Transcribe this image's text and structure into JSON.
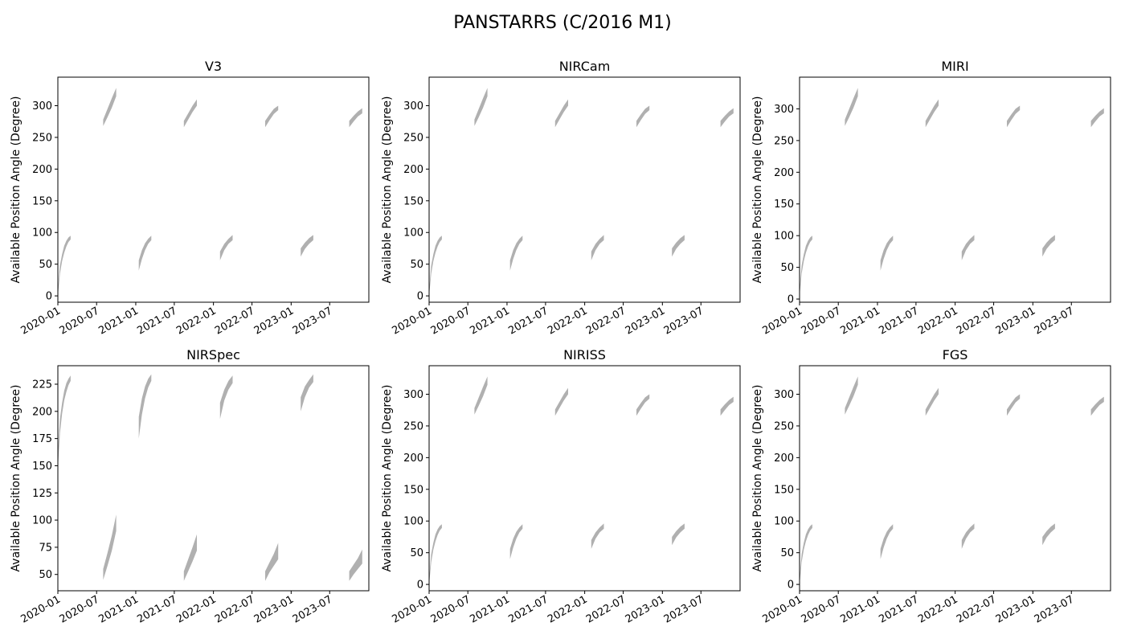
{
  "figure_title": "PANSTARRS (C/2016 M1)",
  "fill_color": "#b0b0b0",
  "chart_data": [
    {
      "type": "area",
      "title": "V3",
      "ylabel": "Available Position Angle (Degree)",
      "xlim": [
        "2020-01-01",
        "2024-01-01"
      ],
      "ylim": [
        -10,
        345
      ],
      "yticks": [
        0,
        50,
        100,
        150,
        200,
        250,
        300
      ],
      "xticks": [
        "2020-01",
        "2020-07",
        "2021-01",
        "2021-07",
        "2022-01",
        "2022-07",
        "2023-01",
        "2023-07"
      ],
      "segments": [
        {
          "start": "2020-01-01",
          "end": "2020-03-01",
          "low": [
            0,
            35,
            55,
            68,
            78,
            85,
            89
          ],
          "high": [
            10,
            48,
            66,
            79,
            87,
            92,
            95
          ]
        },
        {
          "start": "2020-08-01",
          "end": "2020-10-01",
          "low": [
            268,
            282,
            297,
            315
          ],
          "high": [
            278,
            295,
            312,
            328
          ]
        },
        {
          "start": "2021-01-15",
          "end": "2021-03-15",
          "low": [
            40,
            58,
            72,
            82,
            88
          ],
          "high": [
            56,
            72,
            83,
            90,
            95
          ]
        },
        {
          "start": "2021-08-15",
          "end": "2021-10-15",
          "low": [
            266,
            278,
            290,
            300
          ],
          "high": [
            276,
            288,
            300,
            310
          ]
        },
        {
          "start": "2022-02-01",
          "end": "2022-04-01",
          "low": [
            56,
            72,
            82,
            88
          ],
          "high": [
            70,
            82,
            90,
            96
          ]
        },
        {
          "start": "2022-09-01",
          "end": "2022-11-01",
          "low": [
            266,
            277,
            287,
            293
          ],
          "high": [
            276,
            286,
            295,
            300
          ]
        },
        {
          "start": "2023-02-15",
          "end": "2023-04-15",
          "low": [
            62,
            74,
            82,
            88
          ],
          "high": [
            75,
            84,
            91,
            96
          ]
        },
        {
          "start": "2023-10-01",
          "end": "2023-12-01",
          "low": [
            266,
            275,
            283,
            288
          ],
          "high": [
            276,
            284,
            291,
            296
          ]
        }
      ]
    },
    {
      "type": "area",
      "title": "NIRCam",
      "ylabel": "Available Position Angle (Degree)",
      "xlim": [
        "2020-01-01",
        "2024-01-01"
      ],
      "ylim": [
        -10,
        345
      ],
      "yticks": [
        0,
        50,
        100,
        150,
        200,
        250,
        300
      ],
      "xticks": [
        "2020-01",
        "2020-07",
        "2021-01",
        "2021-07",
        "2022-01",
        "2022-07",
        "2023-01",
        "2023-07"
      ],
      "segments": [
        {
          "start": "2020-01-01",
          "end": "2020-03-01",
          "low": [
            0,
            35,
            55,
            68,
            78,
            85,
            89
          ],
          "high": [
            10,
            48,
            66,
            79,
            87,
            92,
            95
          ]
        },
        {
          "start": "2020-08-01",
          "end": "2020-10-01",
          "low": [
            268,
            282,
            297,
            315
          ],
          "high": [
            278,
            295,
            312,
            328
          ]
        },
        {
          "start": "2021-01-15",
          "end": "2021-03-15",
          "low": [
            40,
            58,
            72,
            82,
            88
          ],
          "high": [
            56,
            72,
            83,
            90,
            95
          ]
        },
        {
          "start": "2021-08-15",
          "end": "2021-10-15",
          "low": [
            266,
            278,
            290,
            300
          ],
          "high": [
            276,
            288,
            300,
            310
          ]
        },
        {
          "start": "2022-02-01",
          "end": "2022-04-01",
          "low": [
            56,
            72,
            82,
            88
          ],
          "high": [
            70,
            82,
            90,
            96
          ]
        },
        {
          "start": "2022-09-01",
          "end": "2022-11-01",
          "low": [
            266,
            277,
            287,
            293
          ],
          "high": [
            276,
            286,
            295,
            300
          ]
        },
        {
          "start": "2023-02-15",
          "end": "2023-04-15",
          "low": [
            62,
            74,
            82,
            88
          ],
          "high": [
            75,
            84,
            91,
            96
          ]
        },
        {
          "start": "2023-10-01",
          "end": "2023-12-01",
          "low": [
            266,
            275,
            283,
            288
          ],
          "high": [
            276,
            284,
            291,
            296
          ]
        }
      ]
    },
    {
      "type": "area",
      "title": "MIRI",
      "ylabel": "Available Position Angle (Degree)",
      "xlim": [
        "2020-01-01",
        "2024-01-01"
      ],
      "ylim": [
        -5,
        350
      ],
      "yticks": [
        0,
        50,
        100,
        150,
        200,
        250,
        300
      ],
      "xticks": [
        "2020-01",
        "2020-07",
        "2021-01",
        "2021-07",
        "2022-01",
        "2022-07",
        "2023-01",
        "2023-07"
      ],
      "segments": [
        {
          "start": "2020-01-01",
          "end": "2020-03-01",
          "low": [
            5,
            40,
            60,
            73,
            83,
            90,
            94
          ],
          "high": [
            15,
            53,
            71,
            84,
            92,
            97,
            100
          ]
        },
        {
          "start": "2020-08-01",
          "end": "2020-10-01",
          "low": [
            273,
            287,
            302,
            320
          ],
          "high": [
            283,
            300,
            317,
            333
          ]
        },
        {
          "start": "2021-01-15",
          "end": "2021-03-15",
          "low": [
            45,
            63,
            77,
            87,
            93
          ],
          "high": [
            61,
            77,
            88,
            95,
            100
          ]
        },
        {
          "start": "2021-08-15",
          "end": "2021-10-15",
          "low": [
            271,
            283,
            295,
            305
          ],
          "high": [
            281,
            293,
            305,
            315
          ]
        },
        {
          "start": "2022-02-01",
          "end": "2022-04-01",
          "low": [
            61,
            77,
            87,
            93
          ],
          "high": [
            75,
            87,
            95,
            101
          ]
        },
        {
          "start": "2022-09-01",
          "end": "2022-11-01",
          "low": [
            271,
            282,
            292,
            298
          ],
          "high": [
            281,
            291,
            300,
            305
          ]
        },
        {
          "start": "2023-02-15",
          "end": "2023-04-15",
          "low": [
            67,
            79,
            87,
            93
          ],
          "high": [
            80,
            89,
            96,
            101
          ]
        },
        {
          "start": "2023-10-01",
          "end": "2023-12-01",
          "low": [
            271,
            280,
            288,
            293
          ],
          "high": [
            281,
            289,
            296,
            301
          ]
        }
      ]
    },
    {
      "type": "area",
      "title": "NIRSpec",
      "ylabel": "Available Position Angle (Degree)",
      "xlim": [
        "2020-01-01",
        "2024-01-01"
      ],
      "ylim": [
        35,
        242
      ],
      "yticks": [
        50,
        75,
        100,
        125,
        150,
        175,
        200,
        225
      ],
      "xticks": [
        "2020-01",
        "2020-07",
        "2021-01",
        "2021-07",
        "2022-01",
        "2022-07",
        "2023-01",
        "2023-07"
      ],
      "segments": [
        {
          "start": "2020-01-01",
          "end": "2020-03-01",
          "low": [
            147,
            180,
            198,
            210,
            218,
            224,
            228
          ],
          "high": [
            162,
            193,
            208,
            219,
            226,
            230,
            233
          ]
        },
        {
          "start": "2020-08-01",
          "end": "2020-10-01",
          "low": [
            45,
            58,
            72,
            90
          ],
          "high": [
            55,
            70,
            86,
            105
          ]
        },
        {
          "start": "2021-01-15",
          "end": "2021-03-15",
          "low": [
            175,
            197,
            212,
            222,
            228
          ],
          "high": [
            195,
            212,
            223,
            230,
            234
          ]
        },
        {
          "start": "2021-08-15",
          "end": "2021-10-15",
          "low": [
            44,
            53,
            62,
            72
          ],
          "high": [
            53,
            64,
            75,
            87
          ]
        },
        {
          "start": "2022-02-01",
          "end": "2022-04-01",
          "low": [
            193,
            210,
            220,
            226
          ],
          "high": [
            208,
            220,
            228,
            233
          ]
        },
        {
          "start": "2022-09-01",
          "end": "2022-11-01",
          "low": [
            44,
            52,
            58,
            64
          ],
          "high": [
            53,
            61,
            69,
            79
          ]
        },
        {
          "start": "2023-02-15",
          "end": "2023-04-15",
          "low": [
            200,
            213,
            222,
            227
          ],
          "high": [
            213,
            223,
            229,
            234
          ]
        },
        {
          "start": "2023-10-01",
          "end": "2023-12-01",
          "low": [
            44,
            50,
            55,
            60
          ],
          "high": [
            53,
            59,
            65,
            73
          ]
        }
      ]
    },
    {
      "type": "area",
      "title": "NIRISS",
      "ylabel": "Available Position Angle (Degree)",
      "xlim": [
        "2020-01-01",
        "2024-01-01"
      ],
      "ylim": [
        -10,
        345
      ],
      "yticks": [
        0,
        50,
        100,
        150,
        200,
        250,
        300
      ],
      "xticks": [
        "2020-01",
        "2020-07",
        "2021-01",
        "2021-07",
        "2022-01",
        "2022-07",
        "2023-01",
        "2023-07"
      ],
      "segments": [
        {
          "start": "2020-01-01",
          "end": "2020-03-01",
          "low": [
            0,
            35,
            55,
            68,
            78,
            85,
            89
          ],
          "high": [
            10,
            48,
            66,
            79,
            87,
            92,
            95
          ]
        },
        {
          "start": "2020-08-01",
          "end": "2020-10-01",
          "low": [
            268,
            282,
            297,
            315
          ],
          "high": [
            278,
            295,
            312,
            328
          ]
        },
        {
          "start": "2021-01-15",
          "end": "2021-03-15",
          "low": [
            40,
            58,
            72,
            82,
            88
          ],
          "high": [
            56,
            72,
            83,
            90,
            95
          ]
        },
        {
          "start": "2021-08-15",
          "end": "2021-10-15",
          "low": [
            266,
            278,
            290,
            300
          ],
          "high": [
            276,
            288,
            300,
            310
          ]
        },
        {
          "start": "2022-02-01",
          "end": "2022-04-01",
          "low": [
            56,
            72,
            82,
            88
          ],
          "high": [
            70,
            82,
            90,
            96
          ]
        },
        {
          "start": "2022-09-01",
          "end": "2022-11-01",
          "low": [
            266,
            277,
            287,
            293
          ],
          "high": [
            276,
            286,
            295,
            300
          ]
        },
        {
          "start": "2023-02-15",
          "end": "2023-04-15",
          "low": [
            62,
            74,
            82,
            88
          ],
          "high": [
            75,
            84,
            91,
            96
          ]
        },
        {
          "start": "2023-10-01",
          "end": "2023-12-01",
          "low": [
            266,
            275,
            283,
            288
          ],
          "high": [
            276,
            284,
            291,
            296
          ]
        }
      ]
    },
    {
      "type": "area",
      "title": "FGS",
      "ylabel": "Available Position Angle (Degree)",
      "xlim": [
        "2020-01-01",
        "2024-01-01"
      ],
      "ylim": [
        -10,
        345
      ],
      "yticks": [
        0,
        50,
        100,
        150,
        200,
        250,
        300
      ],
      "xticks": [
        "2020-01",
        "2020-07",
        "2021-01",
        "2021-07",
        "2022-01",
        "2022-07",
        "2023-01",
        "2023-07"
      ],
      "segments": [
        {
          "start": "2020-01-01",
          "end": "2020-03-01",
          "low": [
            0,
            35,
            55,
            68,
            78,
            85,
            89
          ],
          "high": [
            10,
            48,
            66,
            79,
            87,
            92,
            95
          ]
        },
        {
          "start": "2020-08-01",
          "end": "2020-10-01",
          "low": [
            268,
            282,
            297,
            315
          ],
          "high": [
            278,
            295,
            312,
            328
          ]
        },
        {
          "start": "2021-01-15",
          "end": "2021-03-15",
          "low": [
            40,
            58,
            72,
            82,
            88
          ],
          "high": [
            56,
            72,
            83,
            90,
            95
          ]
        },
        {
          "start": "2021-08-15",
          "end": "2021-10-15",
          "low": [
            266,
            278,
            290,
            300
          ],
          "high": [
            276,
            288,
            300,
            310
          ]
        },
        {
          "start": "2022-02-01",
          "end": "2022-04-01",
          "low": [
            56,
            72,
            82,
            88
          ],
          "high": [
            70,
            82,
            90,
            96
          ]
        },
        {
          "start": "2022-09-01",
          "end": "2022-11-01",
          "low": [
            266,
            277,
            287,
            293
          ],
          "high": [
            276,
            286,
            295,
            300
          ]
        },
        {
          "start": "2023-02-15",
          "end": "2023-04-15",
          "low": [
            62,
            74,
            82,
            88
          ],
          "high": [
            75,
            84,
            91,
            96
          ]
        },
        {
          "start": "2023-10-01",
          "end": "2023-12-01",
          "low": [
            266,
            275,
            283,
            288
          ],
          "high": [
            276,
            284,
            291,
            296
          ]
        }
      ]
    }
  ]
}
